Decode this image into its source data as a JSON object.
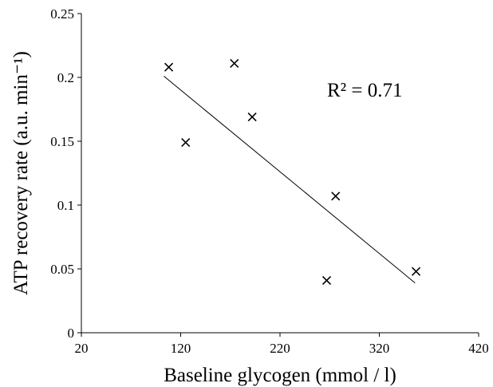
{
  "chart_data": {
    "type": "scatter",
    "x_label": "Baseline glycogen (mmol / l)",
    "y_label": "ATP recovery rate (a.u. min⁻¹)",
    "annotation": "R² = 0.71",
    "x": [
      108,
      125,
      174,
      192,
      276,
      267,
      357
    ],
    "y": [
      0.208,
      0.149,
      0.211,
      0.169,
      0.107,
      0.041,
      0.048
    ],
    "trendline": {
      "x": [
        103,
        356
      ],
      "y": [
        0.201,
        0.039
      ]
    },
    "color": "#000000",
    "xlim": [
      20,
      420
    ],
    "xticks": [
      20,
      120,
      220,
      320,
      420
    ],
    "ylim": [
      0,
      0.25
    ],
    "yticks": [
      0,
      0.05,
      0.1,
      0.15,
      0.2,
      0.25
    ]
  }
}
